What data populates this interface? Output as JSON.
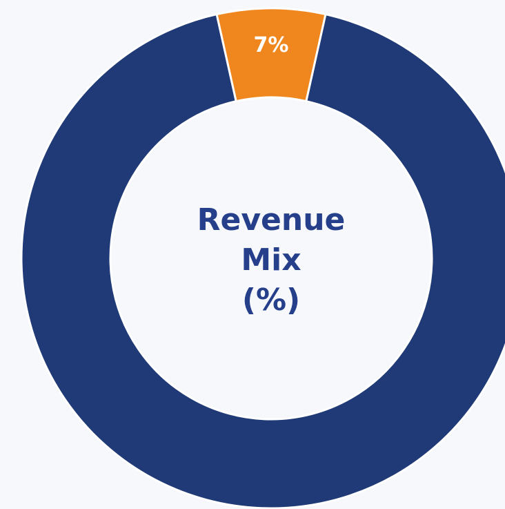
{
  "chart_data": {
    "type": "donut",
    "title": "Revenue Mix (%)",
    "values": [
      7,
      93
    ],
    "value_labels": [
      "7%",
      null
    ],
    "colors": [
      "#f0871e",
      "#1f3a76"
    ]
  }
}
